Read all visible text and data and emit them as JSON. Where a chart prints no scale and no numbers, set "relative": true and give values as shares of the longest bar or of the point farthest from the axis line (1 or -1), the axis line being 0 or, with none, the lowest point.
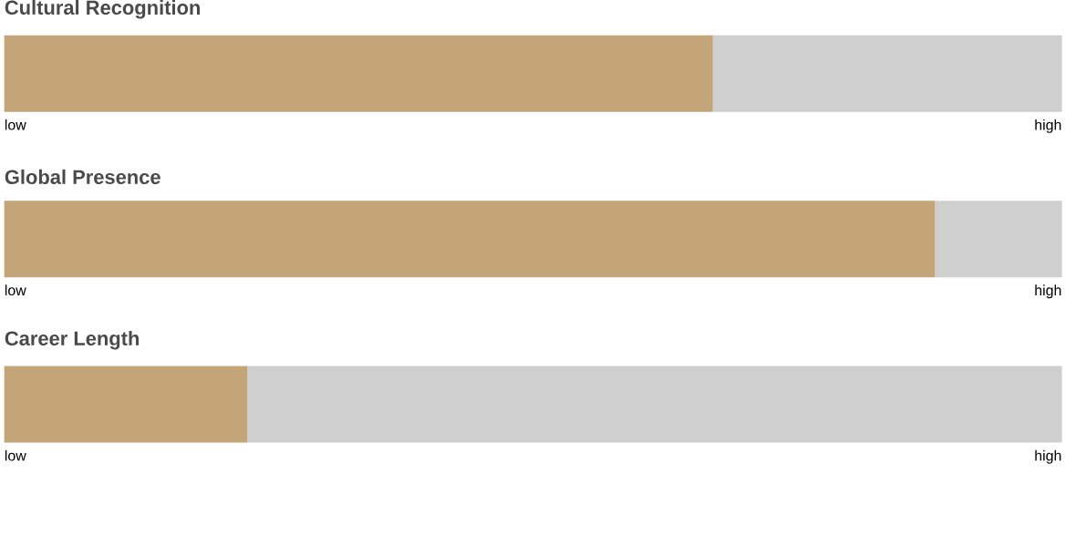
{
  "chart_data": [
    {
      "type": "bar",
      "orientation": "horizontal",
      "stacked": true,
      "relative": true,
      "title": "Cultural Recognition",
      "categories": [
        null
      ],
      "annotations": [
        "low",
        "high"
      ],
      "series": [
        {
          "color": "#c4a57a",
          "values": [
            0.67
          ]
        },
        {
          "color": "#cfcfcf",
          "values": [
            0.33
          ]
        }
      ]
    },
    {
      "type": "bar",
      "orientation": "horizontal",
      "stacked": true,
      "relative": true,
      "title": "Global Presence",
      "categories": [
        null
      ],
      "annotations": [
        "low",
        "high"
      ],
      "series": [
        {
          "color": "#c4a57a",
          "values": [
            0.88
          ]
        },
        {
          "color": "#cfcfcf",
          "values": [
            0.12
          ]
        }
      ]
    },
    {
      "type": "bar",
      "orientation": "horizontal",
      "stacked": true,
      "relative": true,
      "title": "Career Length",
      "categories": [
        null
      ],
      "annotations": [
        "low",
        "high"
      ],
      "series": [
        {
          "color": "#c4a57a",
          "values": [
            0.23
          ]
        },
        {
          "color": "#cfcfcf",
          "values": [
            0.77
          ]
        }
      ]
    }
  ]
}
